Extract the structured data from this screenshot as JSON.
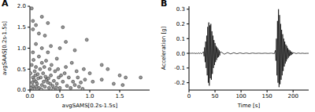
{
  "chart_data": [
    {
      "type": "scatter",
      "title": "A",
      "x_label": "avgSAMS[0.2s-1.5s]",
      "y_label": "avgSAAS[0.2s-1.5s]",
      "color": "#999999",
      "marker": "circle",
      "grid": false,
      "xlim": [
        0,
        2.0
      ],
      "xticks": [
        {
          "value": 0,
          "label": "0.0"
        },
        {
          "value": 0.5,
          "label": "0.5"
        },
        {
          "value": 1,
          "label": "1.0"
        },
        {
          "value": 1.5,
          "label": "1.5"
        }
      ],
      "ylim": [
        0,
        2.0
      ],
      "yticks": [
        {
          "value": 0,
          "label": "0.0"
        },
        {
          "value": 0.5,
          "label": "0.5"
        },
        {
          "value": 1,
          "label": "1.0"
        },
        {
          "value": 1.5,
          "label": "1.5"
        },
        {
          "value": 2,
          "label": "2.0"
        }
      ],
      "x": [
        0.03,
        0.2,
        0.05,
        0.3,
        0.1,
        0.55,
        0.05,
        0.15,
        0.25,
        0.95,
        0.6,
        0.1,
        0.35,
        0.2,
        0.5,
        0.75,
        0.05,
        0.3,
        1.2,
        1.3,
        1.5,
        1.6,
        1.85,
        1.55,
        1.2,
        1.0,
        0.9,
        1.05,
        1.4,
        0.8,
        0.7,
        0.45,
        0.15,
        0.02,
        0.05,
        0.08,
        0.1,
        0.12,
        0.15,
        0.18,
        0.2,
        0.22,
        0.25,
        0.28,
        0.3,
        0.32,
        0.35,
        0.38,
        0.4,
        0.42,
        0.45,
        0.48,
        0.5,
        0.05,
        0.08,
        0.03,
        0.1,
        0.13,
        0.17,
        0.2,
        0.24,
        0.27,
        0.06,
        0.33,
        0.36,
        0.55,
        0.58,
        0.62,
        0.65,
        0.68,
        0.72,
        0.75,
        0.78,
        0.82,
        0.85,
        0.88,
        0.92,
        0.04,
        0.07,
        0.11,
        0.14,
        0.19,
        0.23,
        0.26,
        0.31,
        0.34,
        0.39,
        0.44,
        0.47,
        0.52,
        0.6,
        0.01,
        0.09
      ],
      "values": [
        1.95,
        1.75,
        1.65,
        1.6,
        1.55,
        1.5,
        1.45,
        1.35,
        1.3,
        1.2,
        1.15,
        1.1,
        1.05,
        1.0,
        1.0,
        0.95,
        0.9,
        0.9,
        0.6,
        0.5,
        0.35,
        0.3,
        0.3,
        0.12,
        0.25,
        0.4,
        0.5,
        0.2,
        0.15,
        0.3,
        0.65,
        0.75,
        0.8,
        0.05,
        0.1,
        0.03,
        0.2,
        0.15,
        0.05,
        0.3,
        0.12,
        0.4,
        0.08,
        0.25,
        0.18,
        0.05,
        0.35,
        0.1,
        0.22,
        0.45,
        0.15,
        0.3,
        0.05,
        0.3,
        0.45,
        0.6,
        0.55,
        0.38,
        0.5,
        0.65,
        0.55,
        0.7,
        0.72,
        0.5,
        0.6,
        0.2,
        0.4,
        0.1,
        0.3,
        0.05,
        0.2,
        0.12,
        0.45,
        0.08,
        0.18,
        0.03,
        0.25,
        0.18,
        0.25,
        0.08,
        0.28,
        0.02,
        0.2,
        0.32,
        0.28,
        0.15,
        0.02,
        0.06,
        0.5,
        0.35,
        0.55,
        0.4,
        0.35
      ]
    },
    {
      "type": "line",
      "title": "B",
      "x_label": "Time [s]",
      "y_label": "Acceleration [g]",
      "color": "#000000",
      "grid": false,
      "xlim": [
        0,
        230
      ],
      "xticks": [
        0,
        50,
        100,
        150,
        200
      ],
      "ylim": [
        -0.25,
        0.32
      ],
      "yticks": [
        {
          "value": -0.2,
          "label": "-0.2"
        },
        {
          "value": -0.1,
          "label": "-0.1"
        },
        {
          "value": 0,
          "label": "0.0"
        },
        {
          "value": 0.1,
          "label": "0.1"
        },
        {
          "value": 0.2,
          "label": "0.2"
        },
        {
          "value": 0.3,
          "label": "0.3"
        }
      ],
      "x": [
        0,
        2,
        4,
        6,
        8,
        10,
        12,
        14,
        16,
        18,
        20,
        22,
        24,
        26,
        28,
        29,
        30,
        31,
        32,
        33,
        34,
        35,
        36,
        37,
        38,
        39,
        40,
        41,
        42,
        43,
        44,
        45,
        46,
        47,
        48,
        49,
        50,
        51,
        52,
        53,
        54,
        55,
        56,
        57,
        58,
        59,
        60,
        62,
        68,
        74,
        80,
        86,
        92,
        98,
        104,
        110,
        116,
        122,
        128,
        134,
        140,
        146,
        152,
        158,
        164,
        166,
        167,
        168,
        169,
        170,
        171,
        172,
        173,
        174,
        175,
        176,
        177,
        178,
        179,
        180,
        181,
        182,
        183,
        184,
        185,
        186,
        187,
        188,
        189,
        190,
        191,
        192,
        193,
        194,
        195,
        196,
        197,
        198,
        199,
        200,
        202,
        206,
        210,
        214,
        218,
        222,
        226,
        230
      ],
      "values": [
        0,
        0.001,
        -0.001,
        0.002,
        -0.001,
        0.002,
        -0.002,
        0.001,
        -0.002,
        0.003,
        -0.002,
        0.003,
        -0.004,
        0.005,
        0.01,
        -0.02,
        0.04,
        -0.06,
        0.08,
        -0.1,
        0.12,
        -0.15,
        0.18,
        -0.2,
        0.21,
        -0.22,
        0.19,
        -0.17,
        0.2,
        -0.18,
        0.15,
        -0.14,
        0.12,
        -0.1,
        0.09,
        -0.08,
        0.07,
        -0.06,
        0.05,
        -0.045,
        0.04,
        -0.03,
        0.03,
        -0.025,
        0.02,
        -0.015,
        0.01,
        0.008,
        -0.006,
        0.005,
        -0.004,
        0.004,
        -0.003,
        0.003,
        -0.002,
        0.002,
        -0.002,
        0.002,
        -0.001,
        0.001,
        -0.001,
        0.001,
        -0.001,
        0.001,
        -0.002,
        0.02,
        -0.05,
        0.1,
        -0.15,
        0.22,
        -0.2,
        0.3,
        -0.23,
        0.26,
        -0.21,
        0.2,
        -0.18,
        0.16,
        -0.15,
        0.13,
        -0.12,
        0.1,
        -0.09,
        0.08,
        -0.07,
        0.06,
        -0.055,
        0.05,
        -0.04,
        0.035,
        -0.03,
        0.025,
        -0.02,
        0.02,
        -0.015,
        0.012,
        -0.01,
        0.008,
        -0.005,
        0.004,
        0.003,
        -0.002,
        0.002,
        -0.001,
        0.001,
        -0.001,
        0.0,
        0.0
      ]
    }
  ]
}
